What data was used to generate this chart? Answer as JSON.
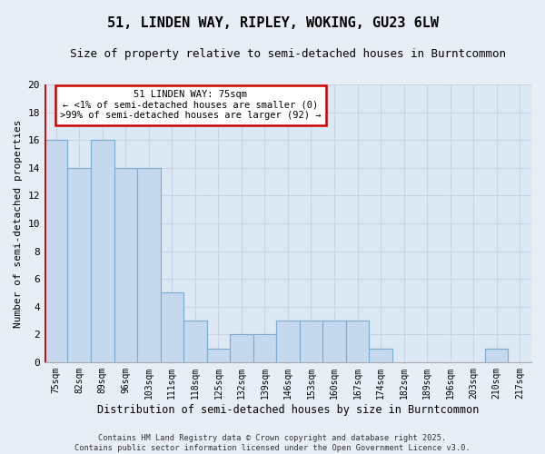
{
  "title": "51, LINDEN WAY, RIPLEY, WOKING, GU23 6LW",
  "subtitle": "Size of property relative to semi-detached houses in Burntcommon",
  "xlabel": "Distribution of semi-detached houses by size in Burntcommon",
  "ylabel": "Number of semi-detached properties",
  "categories": [
    "75sqm",
    "82sqm",
    "89sqm",
    "96sqm",
    "103sqm",
    "111sqm",
    "118sqm",
    "125sqm",
    "132sqm",
    "139sqm",
    "146sqm",
    "153sqm",
    "160sqm",
    "167sqm",
    "174sqm",
    "182sqm",
    "189sqm",
    "196sqm",
    "203sqm",
    "210sqm",
    "217sqm"
  ],
  "values": [
    16,
    14,
    16,
    14,
    14,
    5,
    3,
    1,
    2,
    2,
    3,
    3,
    3,
    3,
    1,
    0,
    0,
    0,
    0,
    1,
    0
  ],
  "highlight_index": 0,
  "bar_color": "#c5d8ee",
  "bar_edge_color": "#7aabcc",
  "highlight_left_edge_color": "#cc0000",
  "ylim": [
    0,
    20
  ],
  "yticks": [
    0,
    2,
    4,
    6,
    8,
    10,
    12,
    14,
    16,
    18,
    20
  ],
  "annotation_title": "51 LINDEN WAY: 75sqm",
  "annotation_line1": "← <1% of semi-detached houses are smaller (0)",
  "annotation_line2": ">99% of semi-detached houses are larger (92) →",
  "annotation_box_facecolor": "#ffffff",
  "annotation_box_edgecolor": "#cc0000",
  "footer1": "Contains HM Land Registry data © Crown copyright and database right 2025.",
  "footer2": "Contains public sector information licensed under the Open Government Licence v3.0.",
  "bg_color": "#e8eef6",
  "grid_color": "#c8d4e4",
  "plot_bg": "#dce8f4"
}
